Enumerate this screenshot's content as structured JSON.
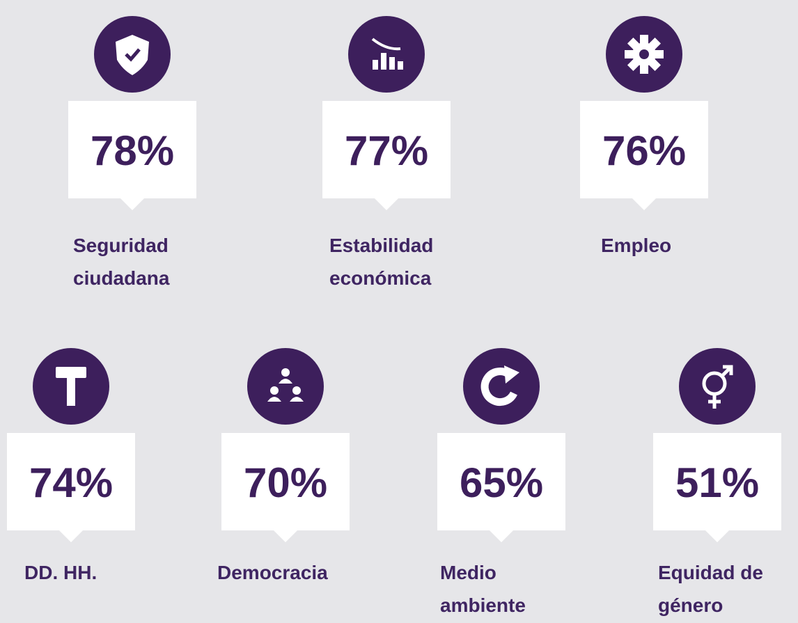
{
  "items": [
    {
      "value": "78%",
      "label": [
        "Seguridad",
        "ciudadana"
      ]
    },
    {
      "value": "77%",
      "label": [
        "Estabilidad",
        "económica"
      ]
    },
    {
      "value": "76%",
      "label": [
        "Empleo"
      ]
    },
    {
      "value": "74%",
      "label": [
        "DD. HH."
      ]
    },
    {
      "value": "70%",
      "label": [
        "Democracia"
      ]
    },
    {
      "value": "65%",
      "label": [
        "Medio",
        "ambiente"
      ]
    },
    {
      "value": "51%",
      "label": [
        "Equidad de",
        "género"
      ]
    }
  ]
}
